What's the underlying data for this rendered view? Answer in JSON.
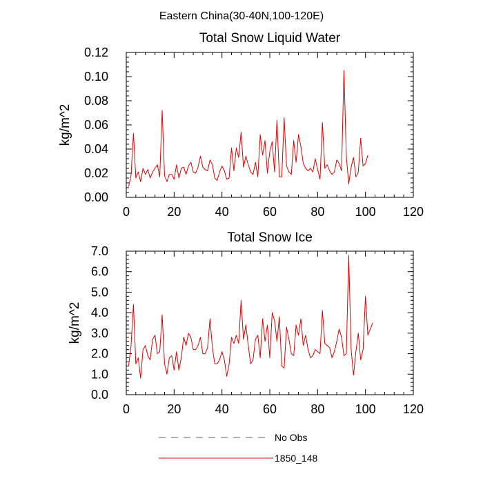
{
  "figure_title": "Eastern China(30-40N,100-120E)",
  "legend": [
    {
      "label": "No Obs",
      "style": "dashed",
      "color": "#5b5bb0"
    },
    {
      "label": "1850_148",
      "style": "solid",
      "color": "#e00000"
    }
  ],
  "chart_data": [
    {
      "type": "line",
      "title": "Total Snow Liquid Water",
      "ylabel": "kg/m^2",
      "xlabel": "",
      "xlim": [
        0,
        120
      ],
      "ylim": [
        0,
        0.12
      ],
      "xticks": [
        0,
        20,
        40,
        60,
        80,
        100,
        120
      ],
      "xtick_labels": [
        "0",
        "20",
        "40",
        "60",
        "80",
        "100",
        "120"
      ],
      "yticks": [
        0,
        0.02,
        0.04,
        0.06,
        0.08,
        0.1,
        0.12
      ],
      "ytick_labels": [
        "0.00",
        "0.02",
        "0.04",
        "0.06",
        "0.08",
        "0.10",
        "0.12"
      ],
      "series": [
        {
          "color": "#e00000",
          "x_start": 1,
          "values": [
            0.009,
            0.018,
            0.053,
            0.016,
            0.021,
            0.013,
            0.024,
            0.019,
            0.023,
            0.016,
            0.021,
            0.024,
            0.027,
            0.017,
            0.072,
            0.018,
            0.013,
            0.019,
            0.019,
            0.015,
            0.027,
            0.016,
            0.024,
            0.025,
            0.019,
            0.026,
            0.029,
            0.021,
            0.02,
            0.025,
            0.034,
            0.025,
            0.023,
            0.022,
            0.031,
            0.027,
            0.016,
            0.014,
            0.021,
            0.026,
            0.022,
            0.015,
            0.016,
            0.041,
            0.022,
            0.041,
            0.033,
            0.054,
            0.025,
            0.034,
            0.027,
            0.021,
            0.019,
            0.029,
            0.017,
            0.052,
            0.035,
            0.047,
            0.02,
            0.038,
            0.046,
            0.021,
            0.064,
            0.017,
            0.017,
            0.066,
            0.026,
            0.021,
            0.019,
            0.047,
            0.029,
            0.052,
            0.042,
            0.028,
            0.024,
            0.022,
            0.024,
            0.021,
            0.032,
            0.023,
            0.015,
            0.062,
            0.024,
            0.027,
            0.022,
            0.019,
            0.021,
            0.031,
            0.028,
            0.022,
            0.105,
            0.034,
            0.011,
            0.025,
            0.033,
            0.017,
            0.021,
            0.049,
            0.026,
            0.028,
            0.035
          ]
        }
      ]
    },
    {
      "type": "line",
      "title": "Total Snow Ice",
      "ylabel": "kg/m^2",
      "xlabel": "",
      "xlim": [
        0,
        120
      ],
      "ylim": [
        0,
        7.0
      ],
      "xticks": [
        0,
        20,
        40,
        60,
        80,
        100,
        120
      ],
      "xtick_labels": [
        "0",
        "20",
        "40",
        "60",
        "80",
        "100",
        "120"
      ],
      "yticks": [
        0,
        1,
        2,
        3,
        4,
        5,
        6,
        7
      ],
      "ytick_labels": [
        "0.0",
        "1.0",
        "2.0",
        "3.0",
        "4.0",
        "5.0",
        "6.0",
        "7.0"
      ],
      "series": [
        {
          "color": "#e00000",
          "x_start": 1,
          "values": [
            1.4,
            2.4,
            4.4,
            1.5,
            1.8,
            0.8,
            2.2,
            2.4,
            1.9,
            1.7,
            2.7,
            2.9,
            2.0,
            2.1,
            3.9,
            1.5,
            1.0,
            1.8,
            1.9,
            1.2,
            2.1,
            1.2,
            1.8,
            2.8,
            2.4,
            3.0,
            2.8,
            2.2,
            2.2,
            2.4,
            2.8,
            2.0,
            2.0,
            2.3,
            3.7,
            2.3,
            1.5,
            1.5,
            1.7,
            2.1,
            1.7,
            0.9,
            1.5,
            2.8,
            2.5,
            2.9,
            2.5,
            4.6,
            2.7,
            3.4,
            2.4,
            1.5,
            1.7,
            2.7,
            2.9,
            1.8,
            3.7,
            2.6,
            3.4,
            1.8,
            4.0,
            3.6,
            2.6,
            3.8,
            1.4,
            1.3,
            3.3,
            2.7,
            2.0,
            1.9,
            3.4,
            2.9,
            3.7,
            2.4,
            2.9,
            2.2,
            1.8,
            1.9,
            2.2,
            2.1,
            2.0,
            4.1,
            2.5,
            2.4,
            2.3,
            1.8,
            2.1,
            2.6,
            3.2,
            2.8,
            1.9,
            2.0,
            6.8,
            2.2,
            0.95,
            2.1,
            3.0,
            1.7,
            2.2,
            4.8,
            2.9,
            3.2,
            3.5
          ]
        }
      ]
    }
  ]
}
